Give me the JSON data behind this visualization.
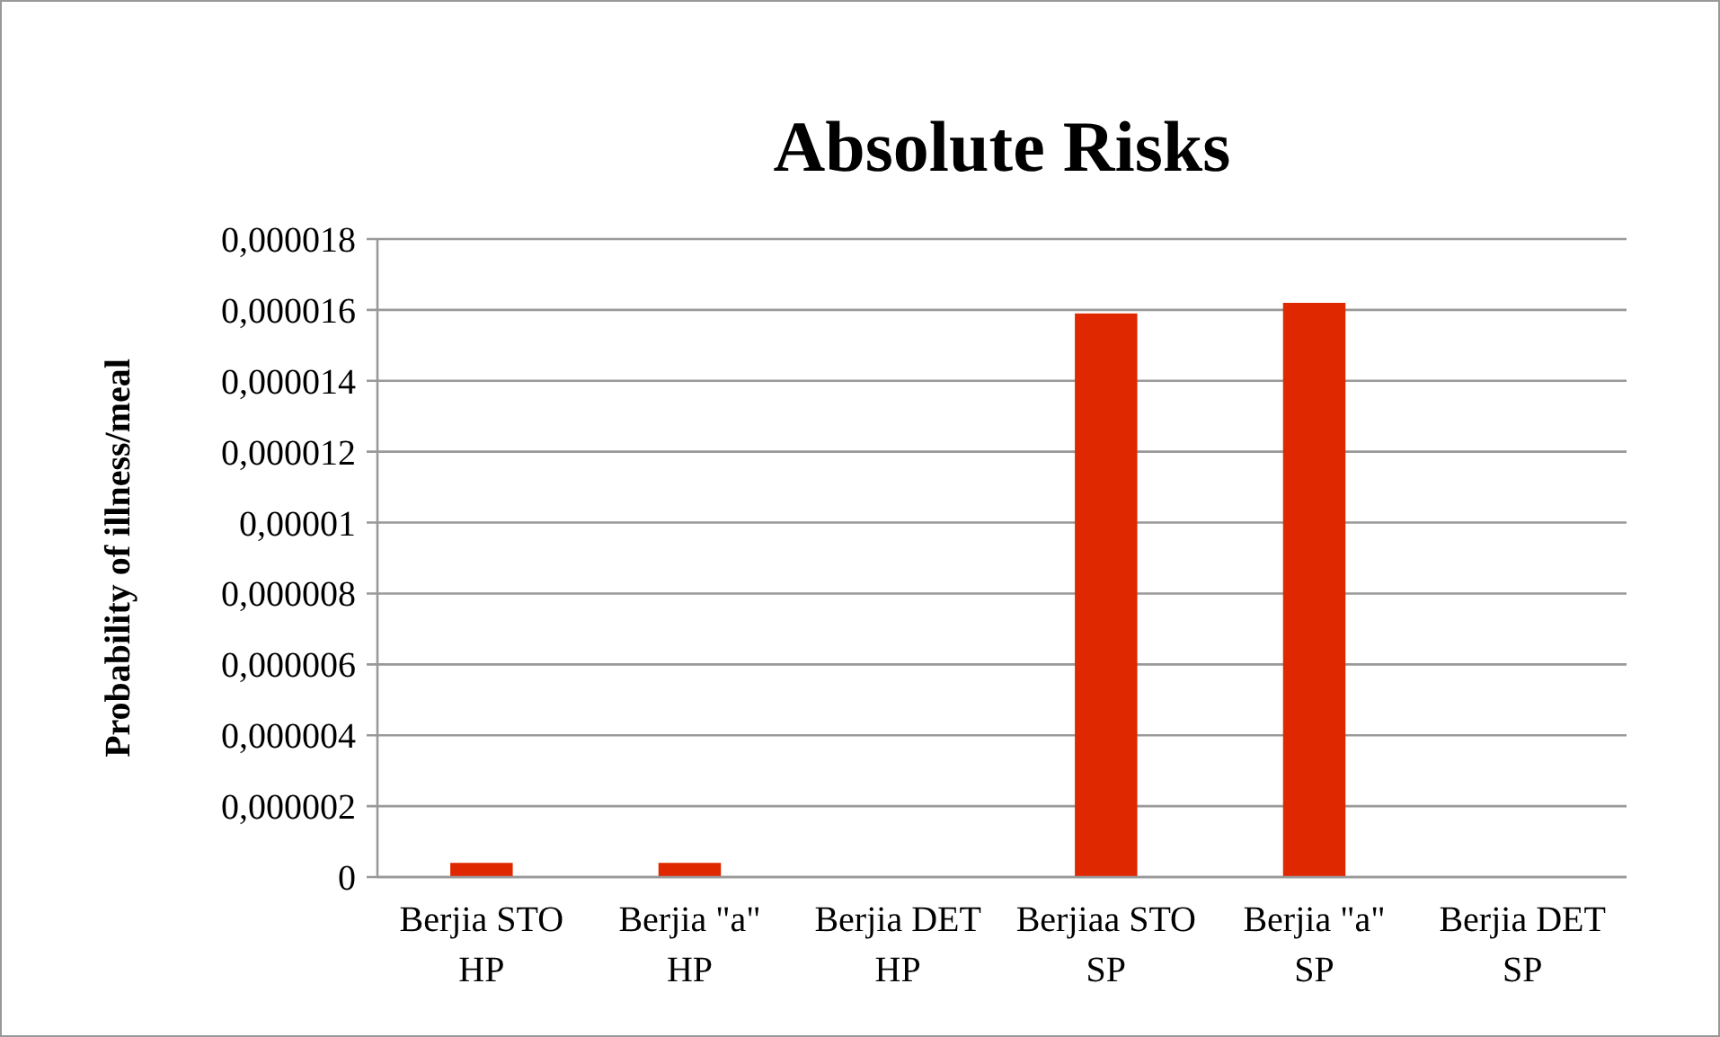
{
  "chart_data": {
    "type": "bar",
    "title": "Absolute Risks",
    "ylabel": "Probability of illness/meal",
    "categories": [
      "Berjia STO HP",
      "Berjia \"a\" HP",
      "Berjia DET HP",
      "Berjiaa STO SP",
      "Berjia \"a\" SP",
      "Berjia DET SP"
    ],
    "values": [
      4e-07,
      4e-07,
      0,
      1.59e-05,
      1.62e-05,
      0
    ],
    "color": "#e02800",
    "ylim": [
      0,
      1.8e-05
    ],
    "yticks": [
      {
        "value": 0,
        "label": "0"
      },
      {
        "value": 2e-06,
        "label": "0,000002"
      },
      {
        "value": 4e-06,
        "label": "0,000004"
      },
      {
        "value": 6e-06,
        "label": "0,000006"
      },
      {
        "value": 8e-06,
        "label": "0,000008"
      },
      {
        "value": 1e-05,
        "label": "0,00001"
      },
      {
        "value": 1.2e-05,
        "label": "0,000012"
      },
      {
        "value": 1.4e-05,
        "label": "0,000014"
      },
      {
        "value": 1.6e-05,
        "label": "0,000016"
      },
      {
        "value": 1.8e-05,
        "label": "0,000018"
      }
    ],
    "grid": "y"
  }
}
